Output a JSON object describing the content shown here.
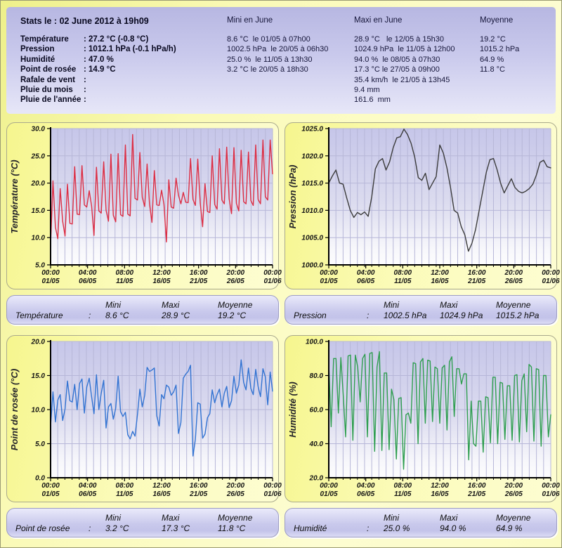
{
  "header": {
    "title": "Stats le : 02 June 2012 à 19h09",
    "columns": {
      "mini": "Mini en June",
      "maxi": "Maxi en June",
      "moyenne": "Moyenne"
    },
    "rows": [
      {
        "label": "Température",
        "current": ": 27.2 °C (-0.8 °C)",
        "mini": "8.6 °C  le 01/05 à 07h00",
        "maxi": "28.9 °C   le 12/05 à 15h30",
        "moyenne": "19.2 °C"
      },
      {
        "label": "Pression",
        "current": ": 1012.1 hPa (-0.1 hPa/h)",
        "mini": "1002.5 hPa  le 20/05 à 06h30",
        "maxi": "1024.9 hPa  le 11/05 à 12h00",
        "moyenne": "1015.2 hPa"
      },
      {
        "label": "Humidité",
        "current": ": 47.0 %",
        "mini": "25.0 %  le 11/05 à 13h30",
        "maxi": "94.0 %  le 08/05 à 07h30",
        "moyenne": "64.9 %"
      },
      {
        "label": "Point de rosée",
        "current": ": 14.9 °C",
        "mini": "3.2 °C le 20/05 à 18h30",
        "maxi": "17.3 °C le 27/05 à 09h00",
        "moyenne": "11.8 °C"
      },
      {
        "label": "Rafale de vent",
        "current": ":",
        "mini": "",
        "maxi": "35.4 km/h  le 21/05 à 13h45",
        "moyenne": ""
      },
      {
        "label": "Pluie du mois",
        "current": ":",
        "mini": "",
        "maxi": "9.4 mm",
        "moyenne": ""
      },
      {
        "label": "Pluie de l'année",
        "current": ":",
        "mini": "",
        "maxi": "161.6  mm",
        "moyenne": ""
      }
    ]
  },
  "summary_headers": {
    "mini": "Mini",
    "maxi": "Maxi",
    "moyenne": "Moyenne",
    "colon": ":"
  },
  "chart_data": {
    "x_axis": {
      "days": 31,
      "tick_labels": [
        [
          "00:00",
          "01/05"
        ],
        [
          "04:00",
          "06/05"
        ],
        [
          "08:00",
          "11/05"
        ],
        [
          "12:00",
          "16/05"
        ],
        [
          "16:00",
          "21/05"
        ],
        [
          "20:00",
          "26/05"
        ],
        [
          "00:00",
          "01/06"
        ]
      ]
    },
    "charts": [
      {
        "id": "temperature",
        "type": "line",
        "ylabel": "Température (°C)",
        "color": "#dc2e44",
        "ylim": [
          5.0,
          30.0
        ],
        "ystep": 5.0,
        "grid": true,
        "values": [
          8.6,
          20.4,
          11.9,
          9.8,
          19.0,
          13.0,
          10.3,
          19.8,
          12.6,
          12.5,
          23.0,
          14.3,
          14.2,
          23.2,
          16.0,
          15.6,
          18.6,
          15.8,
          10.4,
          22.9,
          14.9,
          14.5,
          23.9,
          15.0,
          13.0,
          25.3,
          14.1,
          12.9,
          25.4,
          14.2,
          13.9,
          27.0,
          14.3,
          14.0,
          28.9,
          17.2,
          16.9,
          25.6,
          17.4,
          15.7,
          23.5,
          16.2,
          12.8,
          22.3,
          16.0,
          15.9,
          18.7,
          16.1,
          9.2,
          20.6,
          15.6,
          15.4,
          20.9,
          17.8,
          16.2,
          18.3,
          16.5,
          16.4,
          24.5,
          17.0,
          15.9,
          24.4,
          16.4,
          12.0,
          19.9,
          14.8,
          14.6,
          25.0,
          16.1,
          15.2,
          26.3,
          16.9,
          16.2,
          26.6,
          17.1,
          14.4,
          26.5,
          16.3,
          14.9,
          26.0,
          16.6,
          16.2,
          25.7,
          16.8,
          15.9,
          27.0,
          17.0,
          16.2,
          27.9,
          17.5,
          16.9,
          27.9,
          21.7
        ],
        "summary": {
          "label": "Température",
          "mini": "8.6 °C",
          "maxi": "28.9 °C",
          "moyenne": "19.2 °C"
        }
      },
      {
        "id": "pressure",
        "type": "line",
        "ylabel": "Pression (hPa)",
        "color": "#3c3c3c",
        "ylim": [
          1000.0,
          1025.0
        ],
        "ystep": 5.0,
        "grid": true,
        "values": [
          1015.0,
          1016.3,
          1017.4,
          1015.0,
          1014.8,
          1012.3,
          1010.0,
          1008.7,
          1009.6,
          1009.2,
          1009.7,
          1008.9,
          1012.5,
          1017.6,
          1019.0,
          1019.5,
          1017.4,
          1018.9,
          1021.5,
          1023.3,
          1023.5,
          1024.9,
          1023.9,
          1022.3,
          1019.8,
          1016.0,
          1015.5,
          1016.8,
          1013.8,
          1015.0,
          1016.2,
          1022.0,
          1020.5,
          1017.8,
          1014.2,
          1010.0,
          1009.5,
          1007.0,
          1005.5,
          1002.5,
          1004.0,
          1006.5,
          1010.0,
          1013.5,
          1017.0,
          1019.3,
          1019.5,
          1017.5,
          1015.0,
          1013.2,
          1014.5,
          1015.8,
          1014.2,
          1013.5,
          1013.2,
          1013.5,
          1014.0,
          1014.8,
          1016.5,
          1018.8,
          1019.2,
          1018.0,
          1017.8
        ],
        "summary": {
          "label": "Pression",
          "mini": "1002.5 hPa",
          "maxi": "1024.9 hPa",
          "moyenne": "1015.2 hPa"
        }
      },
      {
        "id": "dewpoint",
        "type": "line",
        "ylabel": "Point de rosée (°C)",
        "color": "#3273d2",
        "ylim": [
          0.0,
          20.0
        ],
        "ystep": 5.0,
        "grid": true,
        "values": [
          7.6,
          12.6,
          8.2,
          11.4,
          12.2,
          8.4,
          10.1,
          14.2,
          11.3,
          11.1,
          13.7,
          10.0,
          13.8,
          14.5,
          9.5,
          13.3,
          14.6,
          11.9,
          9.4,
          15.1,
          10.0,
          12.4,
          14.3,
          7.3,
          10.4,
          10.9,
          8.6,
          10.2,
          14.9,
          9.7,
          9.0,
          9.6,
          6.3,
          5.7,
          6.8,
          6.1,
          9.3,
          13.0,
          10.4,
          12.1,
          16.2,
          15.6,
          15.8,
          16.1,
          9.1,
          7.6,
          12.2,
          11.6,
          13.6,
          13.3,
          12.1,
          12.6,
          13.6,
          6.5,
          8.1,
          14.6,
          15.2,
          15.6,
          16.5,
          3.2,
          5.6,
          11.0,
          10.8,
          5.8,
          6.4,
          8.8,
          9.4,
          12.9,
          11.0,
          12.2,
          13.0,
          10.4,
          12.4,
          13.4,
          10.3,
          11.3,
          14.9,
          12.4,
          13.6,
          17.3,
          14.0,
          12.9,
          16.1,
          13.1,
          12.2,
          15.9,
          13.4,
          11.9,
          16.0,
          14.8,
          10.7,
          15.5,
          12.7
        ],
        "summary": {
          "label": "Point de rosée",
          "mini": "3.2 °C",
          "maxi": "17.3 °C",
          "moyenne": "11.8 °C"
        }
      },
      {
        "id": "humidity",
        "type": "line",
        "ylabel": "Humidité (%)",
        "color": "#2f9e50",
        "ylim": [
          20.0,
          100.0
        ],
        "ystep": 20.0,
        "grid": true,
        "values": [
          86.5,
          50.0,
          90.0,
          90.0,
          58.0,
          90.5,
          68.5,
          44.0,
          91.5,
          92.0,
          42.0,
          92.0,
          85.0,
          64.5,
          90.0,
          92.5,
          44.0,
          93.0,
          93.5,
          35.5,
          85.0,
          94.0,
          36.0,
          81.5,
          81.5,
          36.5,
          72.0,
          66.0,
          31.0,
          66.5,
          67.0,
          25.0,
          57.0,
          58.0,
          52.0,
          87.5,
          87.0,
          40.0,
          88.0,
          90.0,
          52.0,
          89.0,
          88.5,
          53.0,
          85.0,
          84.0,
          52.0,
          84.5,
          86.0,
          48.0,
          88.0,
          91.0,
          56.0,
          84.0,
          84.0,
          75.0,
          81.0,
          81.0,
          30.5,
          65.0,
          40.0,
          38.5,
          65.0,
          65.0,
          35.0,
          67.5,
          67.0,
          40.5,
          79.0,
          79.0,
          40.0,
          76.0,
          75.5,
          42.5,
          74.0,
          74.0,
          42.0,
          80.0,
          80.5,
          41.0,
          77.0,
          81.0,
          47.0,
          86.5,
          85.0,
          41.5,
          84.0,
          83.5,
          38.5,
          80.0,
          80.0,
          44.0,
          57.0
        ],
        "summary": {
          "label": "Humidité",
          "mini": "25.0 %",
          "maxi": "94.0 %",
          "moyenne": "64.9 %"
        }
      }
    ]
  },
  "plot_colors": {
    "bg_top": "#c6c6e9",
    "bg_bottom": "#fdfdfe",
    "gridline": "#b7b7d8",
    "axis": "#000000"
  }
}
